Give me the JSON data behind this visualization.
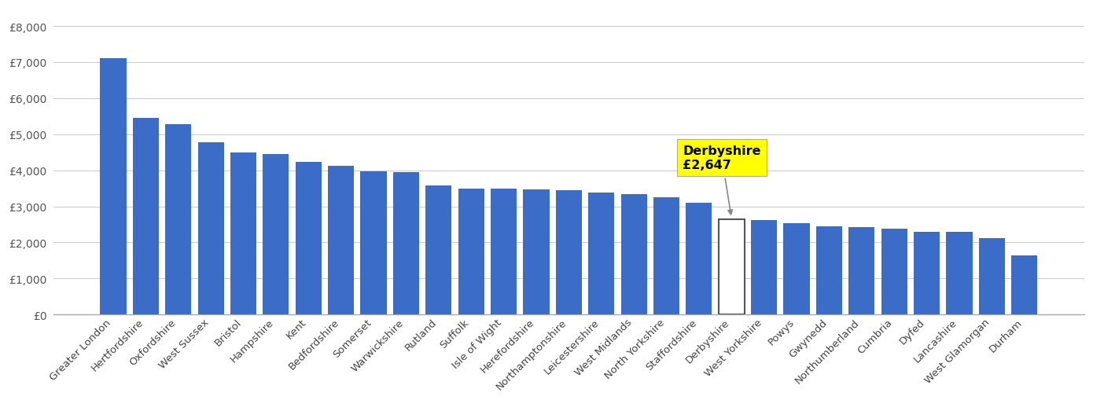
{
  "categories": [
    "Greater London",
    "Hertfordshire",
    "Oxfordshire",
    "West Sussex",
    "Bristol",
    "Hampshire",
    "Kent",
    "Bedfordshire",
    "Somerset",
    "Warwickshire",
    "Rutland",
    "Suffolk",
    "Isle of Wight",
    "Herefordshire",
    "Northamptonshire",
    "Leicestershire",
    "West Midlands",
    "North Yorkshire",
    "Staffordshire",
    "Derbyshire",
    "West Yorkshire",
    "Powys",
    "Gwynedd",
    "Northumberland",
    "Cumbria",
    "Dyfed",
    "Lancashire",
    "West Glamorgan",
    "Durham"
  ],
  "values": [
    7100,
    5450,
    5270,
    4780,
    4500,
    4460,
    4230,
    4120,
    3970,
    3960,
    3570,
    3500,
    3490,
    3470,
    3450,
    3380,
    3350,
    3250,
    3100,
    2647,
    2620,
    2530,
    2450,
    2420,
    2380,
    2300,
    2290,
    2130,
    1650
  ],
  "bar_color": "#3B6CC8",
  "highlight_color": "#ffffff",
  "highlight_edge_color": "#555555",
  "annotation_bg": "#ffff00",
  "highlight_index": 19,
  "grid_color": "#cccccc",
  "background_color": "#ffffff",
  "ylim": [
    0,
    8500
  ],
  "yticks": [
    0,
    1000,
    2000,
    3000,
    4000,
    5000,
    6000,
    7000,
    8000
  ]
}
